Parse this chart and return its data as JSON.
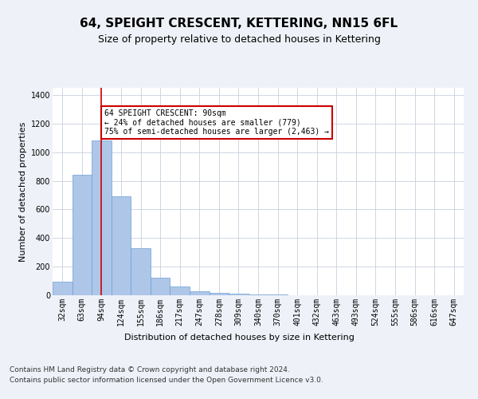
{
  "title": "64, SPEIGHT CRESCENT, KETTERING, NN15 6FL",
  "subtitle": "Size of property relative to detached houses in Kettering",
  "xlabel": "Distribution of detached houses by size in Kettering",
  "ylabel": "Number of detached properties",
  "categories": [
    "32sqm",
    "63sqm",
    "94sqm",
    "124sqm",
    "155sqm",
    "186sqm",
    "217sqm",
    "247sqm",
    "278sqm",
    "309sqm",
    "340sqm",
    "370sqm",
    "401sqm",
    "432sqm",
    "463sqm",
    "493sqm",
    "524sqm",
    "555sqm",
    "586sqm",
    "616sqm",
    "647sqm"
  ],
  "values": [
    95,
    840,
    1080,
    690,
    330,
    125,
    60,
    28,
    18,
    10,
    5,
    3,
    2,
    1,
    1,
    1,
    0,
    0,
    0,
    0,
    0
  ],
  "bar_color": "#aec6e8",
  "bar_edge_color": "#6b9fd4",
  "vline_x": 2,
  "vline_color": "#cc0000",
  "annotation_text": "64 SPEIGHT CRESCENT: 90sqm\n← 24% of detached houses are smaller (779)\n75% of semi-detached houses are larger (2,463) →",
  "annotation_box_color": "#ffffff",
  "annotation_box_edge_color": "#cc0000",
  "footer_text": "Contains HM Land Registry data © Crown copyright and database right 2024.\nContains public sector information licensed under the Open Government Licence v3.0.",
  "ylim": [
    0,
    1450
  ],
  "yticks": [
    0,
    200,
    400,
    600,
    800,
    1000,
    1200,
    1400
  ],
  "title_fontsize": 11,
  "subtitle_fontsize": 9,
  "axis_label_fontsize": 8,
  "tick_fontsize": 7,
  "footer_fontsize": 6.5,
  "bg_color": "#eef2f8",
  "plot_bg_color": "#ffffff"
}
